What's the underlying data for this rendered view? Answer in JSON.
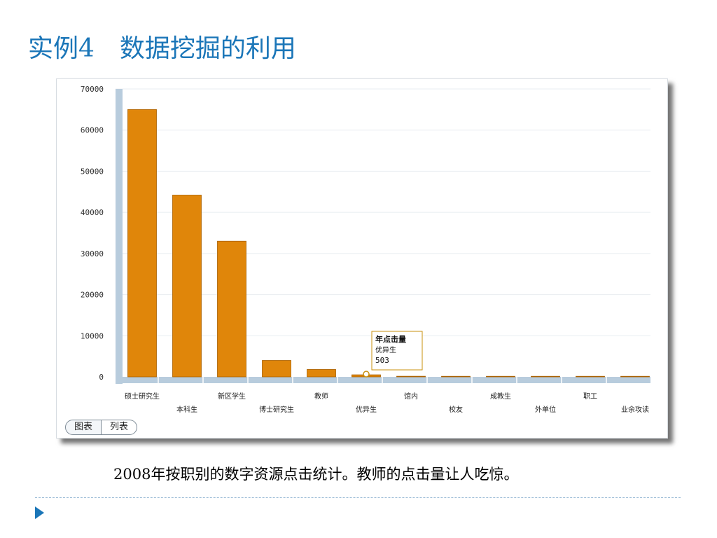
{
  "slide": {
    "title": "实例4　数据挖掘的利用",
    "caption": "2008年按职别的数字资源点击统计。教师的点击量让人吃惊。"
  },
  "tabs": [
    {
      "label": "图表",
      "active": true
    },
    {
      "label": "列表",
      "active": false
    }
  ],
  "chart_data": {
    "type": "bar",
    "ylim": [
      0,
      70000
    ],
    "yticks": [
      0,
      10000,
      20000,
      30000,
      40000,
      50000,
      60000,
      70000
    ],
    "grid": true,
    "categories": [
      "硕士研究生",
      "本科生",
      "新区学生",
      "博士研究生",
      "教师",
      "优异生",
      "馆内",
      "校友",
      "成教生",
      "外单位",
      "职工",
      "业余攻读"
    ],
    "values": [
      65000,
      44200,
      33000,
      4000,
      1800,
      503,
      150,
      120,
      60,
      50,
      40,
      20
    ],
    "tooltip": {
      "title": "年点击量",
      "category": "优异生",
      "value": "503"
    },
    "colors": {
      "bar": "#e0860a",
      "bar_edge": "#a85f00",
      "axis": "#b8ccdd",
      "grid": "#e8edf1",
      "tooltip_border": "#c9900c"
    }
  },
  "icons": {
    "nav": "play-triangle-icon"
  }
}
